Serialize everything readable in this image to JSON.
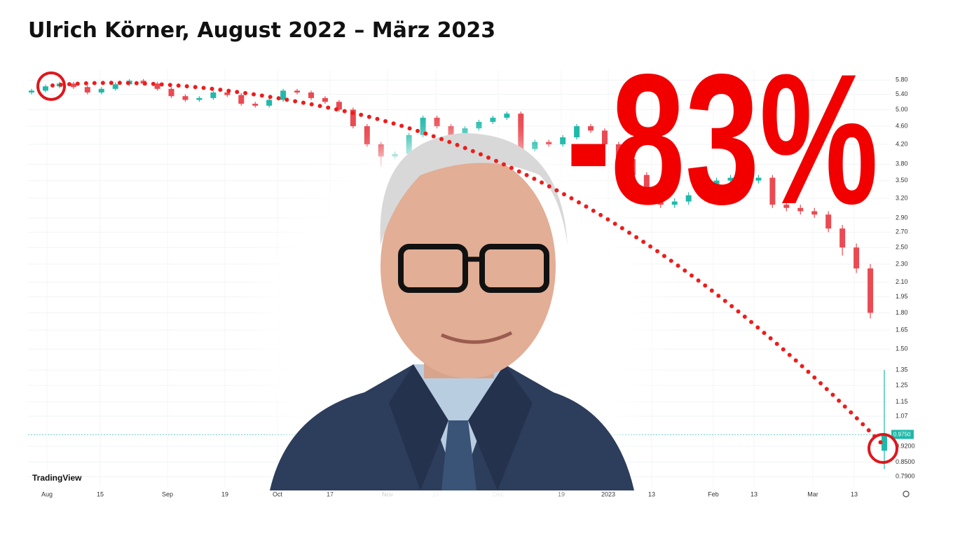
{
  "chart_data": {
    "type": "candlestick",
    "title": "Ulrich Körner, August 2022 – März 2023",
    "annotation": "-83%",
    "watermark": "TradingView",
    "log_scale": true,
    "grid": true,
    "up_color": "#1fb9a9",
    "down_color": "#ea4a52",
    "x_tick_labels": [
      "Aug",
      "15",
      "Sep",
      "19",
      "Oct",
      "17",
      "Nov",
      "14",
      "Dec",
      "19",
      "2023",
      "13",
      "Feb",
      "13",
      "Mar",
      "13"
    ],
    "ylim": [
      0.75,
      6.1
    ],
    "yticks": [
      {
        "value": 5.8,
        "label": "5.80"
      },
      {
        "value": 5.4,
        "label": "5.40"
      },
      {
        "value": 5,
        "label": "5.00"
      },
      {
        "value": 4.6,
        "label": "4.60"
      },
      {
        "value": 4.2,
        "label": "4.20"
      },
      {
        "value": 3.8,
        "label": "3.80"
      },
      {
        "value": 3.5,
        "label": "3.50"
      },
      {
        "value": 3.2,
        "label": "3.20"
      },
      {
        "value": 2.9,
        "label": "2.90"
      },
      {
        "value": 2.7,
        "label": "2.70"
      },
      {
        "value": 2.5,
        "label": "2.50"
      },
      {
        "value": 2.3,
        "label": "2.30"
      },
      {
        "value": 2.1,
        "label": "2.10"
      },
      {
        "value": 1.95,
        "label": "1.95"
      },
      {
        "value": 1.8,
        "label": "1.80"
      },
      {
        "value": 1.65,
        "label": "1.65"
      },
      {
        "value": 1.5,
        "label": "1.50"
      },
      {
        "value": 1.35,
        "label": "1.35"
      },
      {
        "value": 1.25,
        "label": "1.25"
      },
      {
        "value": 1.15,
        "label": "1.15"
      },
      1.07,
      {
        "value": 0.92,
        "label": "0.9200"
      },
      {
        "value": 0.85,
        "label": "0.8500"
      },
      {
        "value": 0.79,
        "label": "0.7900"
      }
    ],
    "last_price_label": "0.9750",
    "open": [
      5.45,
      5.5,
      5.62,
      5.7,
      5.6,
      5.45,
      5.55,
      5.68,
      5.78,
      5.7,
      5.55,
      5.35,
      5.25,
      5.3,
      5.45,
      5.38,
      5.15,
      5.1,
      5.25,
      5.5,
      5.45,
      5.3,
      5.2,
      5.0,
      4.6,
      4.2,
      3.95,
      4.0,
      4.4,
      4.8,
      4.6,
      4.4,
      4.55,
      4.7,
      4.8,
      4.9,
      4.1,
      4.25,
      4.2,
      4.35,
      4.6,
      4.5,
      4.2,
      3.9,
      3.6,
      3.3,
      3.1,
      3.15,
      3.25,
      3.4,
      3.5,
      3.55,
      3.5,
      3.55,
      3.1,
      3.05,
      3.0,
      2.95,
      2.75,
      2.5,
      2.25,
      0.9
    ],
    "high": [
      5.55,
      5.67,
      5.75,
      5.75,
      5.65,
      5.6,
      5.73,
      5.83,
      5.83,
      5.75,
      5.6,
      5.4,
      5.35,
      5.5,
      5.5,
      5.43,
      5.2,
      5.3,
      5.55,
      5.55,
      5.5,
      5.35,
      5.25,
      5.05,
      4.65,
      4.25,
      4.05,
      4.45,
      4.85,
      4.85,
      4.65,
      4.6,
      4.75,
      4.85,
      4.95,
      4.95,
      4.3,
      4.3,
      4.4,
      4.65,
      4.65,
      4.55,
      4.25,
      3.95,
      3.65,
      3.35,
      3.2,
      3.3,
      3.45,
      3.55,
      3.6,
      3.6,
      3.6,
      3.6,
      3.15,
      3.1,
      3.05,
      3.0,
      2.8,
      2.55,
      2.3,
      1.35
    ],
    "low": [
      5.4,
      5.45,
      5.57,
      5.55,
      5.4,
      5.4,
      5.5,
      5.63,
      5.65,
      5.5,
      5.3,
      5.2,
      5.2,
      5.25,
      5.33,
      5.1,
      5.05,
      5.05,
      5.2,
      5.4,
      5.25,
      5.15,
      4.95,
      4.55,
      4.15,
      3.75,
      3.9,
      3.95,
      4.35,
      4.55,
      4.35,
      4.35,
      4.5,
      4.65,
      4.75,
      4.0,
      4.05,
      4.15,
      4.15,
      4.3,
      4.45,
      4.15,
      3.85,
      3.55,
      3.25,
      3.05,
      3.05,
      3.1,
      3.2,
      3.35,
      3.45,
      3.45,
      3.45,
      3.05,
      3.0,
      2.95,
      2.9,
      2.7,
      2.4,
      2.2,
      1.75,
      0.82
    ],
    "close": [
      5.5,
      5.62,
      5.7,
      5.6,
      5.45,
      5.55,
      5.68,
      5.78,
      5.7,
      5.55,
      5.35,
      5.25,
      5.3,
      5.45,
      5.38,
      5.15,
      5.1,
      5.25,
      5.5,
      5.45,
      5.3,
      5.2,
      5.0,
      4.6,
      4.2,
      3.95,
      4.0,
      4.4,
      4.8,
      4.6,
      4.4,
      4.55,
      4.7,
      4.8,
      4.9,
      4.1,
      4.25,
      4.2,
      4.35,
      4.6,
      4.5,
      4.2,
      3.9,
      3.6,
      3.3,
      3.1,
      3.15,
      3.25,
      3.4,
      3.5,
      3.55,
      3.5,
      3.55,
      3.1,
      3.05,
      3.0,
      2.95,
      2.75,
      2.5,
      2.25,
      1.8,
      0.975
    ]
  }
}
